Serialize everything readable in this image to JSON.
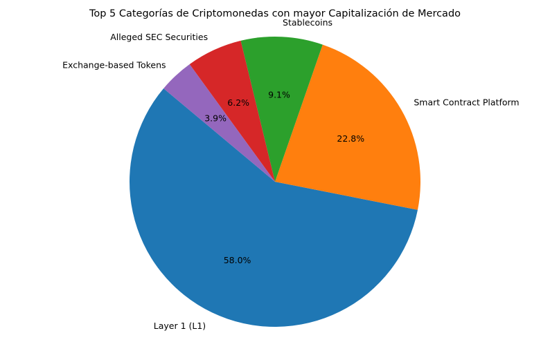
{
  "chart_data": {
    "type": "pie",
    "title": "Top 5 Categorías de Criptomonedas con mayor Capitalización de Mercado",
    "slices": [
      {
        "label": "Layer 1 (L1)",
        "value": 58.0,
        "pct_label": "58.0%",
        "color": "#1f77b4"
      },
      {
        "label": "Smart Contract Platform",
        "value": 22.8,
        "pct_label": "22.8%",
        "color": "#ff7f0e"
      },
      {
        "label": "Stablecoins",
        "value": 9.1,
        "pct_label": "9.1%",
        "color": "#2ca02c"
      },
      {
        "label": "Alleged SEC Securities",
        "value": 6.2,
        "pct_label": "6.2%",
        "color": "#d62728"
      },
      {
        "label": "Exchange-based Tokens",
        "value": 3.9,
        "pct_label": "3.9%",
        "color": "#9467bd"
      }
    ],
    "start_angle_deg": 140,
    "direction": "counterclockwise",
    "legend": "none"
  }
}
